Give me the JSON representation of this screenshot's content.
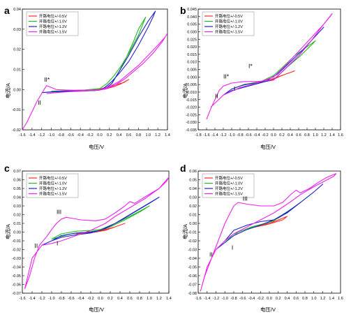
{
  "chart_data": [
    {
      "type": "line",
      "panel_label": "a",
      "xlabel": "电压/V",
      "ylabel": "电流/A",
      "xlim": [
        -1.6,
        1.4
      ],
      "ylim": [
        -0.02,
        0.04
      ],
      "xticks": [
        "-1.6",
        "-1.4",
        "-1.2",
        "-1.0",
        "-0.8",
        "-0.6",
        "-0.4",
        "-0.2",
        "0.0",
        "0.2",
        "0.4",
        "0.6",
        "0.8",
        "1.0",
        "1.2",
        "1.4"
      ],
      "yticks": [
        "-0.02",
        "-0.01",
        "0.00",
        "0.01",
        "0.02",
        "0.03",
        "0.04"
      ],
      "legend": [
        {
          "name": "开路电位+/-0.5V",
          "color": "#ff2a2a"
        },
        {
          "name": "开路电位+/-1.0V",
          "color": "#22bb22"
        },
        {
          "name": "开路电位+/-1.2V",
          "color": "#2222cc"
        },
        {
          "name": "开路电位+/-1.5V",
          "color": "#ee22ee"
        }
      ],
      "annotations": [
        {
          "text": "II*",
          "x": -1.15,
          "y": 0.004
        },
        {
          "text": "II",
          "x": -1.28,
          "y": -0.0075
        }
      ],
      "series": [
        {
          "name": "开路电位+/-0.5V",
          "x": [
            -0.7,
            -0.5,
            -0.2,
            0.0,
            0.15,
            0.3,
            0.45,
            0.6,
            0.5,
            0.3,
            0.15,
            0.0,
            -0.3,
            -0.7
          ],
          "y": [
            -0.0005,
            -0.0005,
            -0.0004,
            -0.0002,
            0.0005,
            0.0015,
            0.003,
            0.005,
            0.0035,
            0.0022,
            0.0012,
            0.0003,
            -0.0002,
            -0.0005
          ]
        },
        {
          "name": "开路电位+/-1.0V",
          "x": [
            -1.0,
            -0.8,
            -0.5,
            -0.2,
            0.1,
            0.25,
            0.4,
            0.55,
            0.7,
            0.8,
            0.9,
            0.95,
            0.9,
            0.8,
            0.6,
            0.45,
            0.3,
            0.15,
            0.0,
            -0.3,
            -0.6,
            -1.0
          ],
          "y": [
            -0.0008,
            -0.0007,
            -0.0006,
            -0.0004,
            0.0002,
            0.003,
            0.009,
            0.016,
            0.024,
            0.03,
            0.034,
            0.036,
            0.033,
            0.027,
            0.018,
            0.012,
            0.007,
            0.003,
            0.0005,
            -0.0002,
            -0.0005,
            -0.0008
          ]
        },
        {
          "name": "开路电位+/-1.2V",
          "x": [
            -1.2,
            -1.0,
            -0.7,
            -0.4,
            -0.1,
            0.1,
            0.25,
            0.4,
            0.6,
            0.8,
            1.0,
            1.15,
            1.1,
            1.0,
            0.8,
            0.6,
            0.4,
            0.25,
            0.1,
            0.0,
            -0.3,
            -0.7,
            -1.0,
            -1.2
          ],
          "y": [
            -0.0015,
            -0.0012,
            -0.0009,
            -0.0007,
            -0.0005,
            0.0003,
            0.003,
            0.009,
            0.017,
            0.026,
            0.034,
            0.039,
            0.036,
            0.031,
            0.022,
            0.014,
            0.008,
            0.004,
            0.001,
            -0.0003,
            -0.0005,
            -0.0008,
            -0.0011,
            -0.0015
          ]
        },
        {
          "name": "开路电位+/-1.5V",
          "x": [
            -1.6,
            -1.5,
            -1.4,
            -1.3,
            -1.2,
            -1.1,
            -1.0,
            -0.9,
            -0.7,
            -0.4,
            -0.1,
            0.1,
            0.3,
            0.5,
            0.7,
            0.9,
            1.1,
            1.3,
            1.4,
            1.35,
            1.2,
            1.0,
            0.8,
            0.6,
            0.4,
            0.2,
            0.0,
            -0.3,
            -0.6,
            -0.9,
            -1.1
          ],
          "y": [
            -0.02,
            -0.016,
            -0.011,
            -0.006,
            -0.002,
            0.002,
            0.001,
            0.0,
            -0.0002,
            -0.0004,
            -0.0003,
            0.0002,
            0.002,
            0.005,
            0.009,
            0.013,
            0.018,
            0.024,
            0.028,
            0.026,
            0.022,
            0.017,
            0.012,
            0.008,
            0.004,
            0.0015,
            -0.0002,
            -0.0007,
            -0.001,
            -0.0015,
            -0.002
          ]
        }
      ]
    },
    {
      "type": "line",
      "panel_label": "b",
      "xlabel": "电压/V",
      "ylabel": "电流/A",
      "xlim": [
        -1.8,
        1.6
      ],
      "ylim": [
        -0.035,
        0.045
      ],
      "xticks": [
        "-1.8",
        "-1.6",
        "-1.4",
        "-1.2",
        "-1.0",
        "-0.8",
        "-0.6",
        "-0.4",
        "-0.2",
        "0.0",
        "0.2",
        "0.4",
        "0.6",
        "0.8",
        "1.0",
        "1.2",
        "1.4",
        "1.6"
      ],
      "yticks": [
        "-0.035",
        "-0.030",
        "-0.025",
        "-0.020",
        "-0.015",
        "-0.010",
        "-0.005",
        "0.000",
        "0.005",
        "0.010",
        "0.015",
        "0.020",
        "0.025",
        "0.030",
        "0.035",
        "0.040",
        "0.045"
      ],
      "legend": [
        {
          "name": "开路电位+/-0.5V",
          "color": "#ff2a2a"
        },
        {
          "name": "开路电位+/-1.0V",
          "color": "#22bb22"
        },
        {
          "name": "开路电位+/-1.2V",
          "color": "#2222cc"
        },
        {
          "name": "开路电位+/-1.5V",
          "color": "#ee22ee"
        }
      ],
      "annotations": [
        {
          "text": "I*",
          "x": -0.6,
          "y": 0.006
        },
        {
          "text": "II*",
          "x": -1.2,
          "y": -0.001
        },
        {
          "text": "I",
          "x": -0.95,
          "y": -0.009
        },
        {
          "text": "II",
          "x": -1.4,
          "y": -0.014
        }
      ],
      "series": [
        {
          "name": "开路电位+/-0.5V",
          "x": [
            -0.5,
            -0.2,
            0.0,
            0.2,
            0.5,
            0.3,
            0.1,
            -0.1,
            -0.5
          ],
          "y": [
            -0.004,
            -0.003,
            -0.0015,
            0.001,
            0.004,
            0.002,
            0.0,
            -0.002,
            -0.004
          ]
        },
        {
          "name": "开路电位+/-1.0V",
          "x": [
            -1.0,
            -0.8,
            -0.5,
            -0.2,
            0.0,
            0.3,
            0.6,
            0.9,
            1.0,
            0.8,
            0.5,
            0.2,
            0.0,
            -0.3,
            -0.7,
            -1.0
          ],
          "y": [
            -0.008,
            -0.006,
            -0.004,
            -0.003,
            -0.002,
            0.006,
            0.013,
            0.021,
            0.024,
            0.02,
            0.014,
            0.006,
            0.001,
            -0.003,
            -0.005,
            -0.008
          ]
        },
        {
          "name": "开路电位+/-1.2V",
          "x": [
            -1.2,
            -1.0,
            -0.7,
            -0.4,
            0.0,
            0.3,
            0.6,
            0.9,
            1.2,
            1.0,
            0.7,
            0.4,
            0.1,
            -0.2,
            -0.6,
            -1.0,
            -1.2
          ],
          "y": [
            -0.012,
            -0.008,
            -0.005,
            -0.004,
            -0.002,
            0.006,
            0.014,
            0.024,
            0.033,
            0.027,
            0.018,
            0.01,
            0.002,
            -0.003,
            -0.006,
            -0.009,
            -0.012
          ]
        },
        {
          "name": "开路电位+/-1.5V",
          "x": [
            -1.6,
            -1.5,
            -1.4,
            -1.3,
            -1.2,
            -1.0,
            -0.7,
            -0.4,
            0.0,
            0.3,
            0.6,
            0.9,
            1.2,
            1.4,
            1.35,
            1.2,
            0.9,
            0.6,
            0.3,
            0.0,
            -0.4,
            -0.8,
            -1.2,
            -1.5
          ],
          "y": [
            -0.028,
            -0.021,
            -0.015,
            -0.009,
            -0.006,
            -0.004,
            -0.003,
            -0.003,
            -0.002,
            0.006,
            0.014,
            0.024,
            0.035,
            0.042,
            0.04,
            0.035,
            0.026,
            0.017,
            0.008,
            0.0,
            -0.004,
            -0.007,
            -0.012,
            -0.02
          ]
        }
      ]
    },
    {
      "type": "line",
      "panel_label": "c",
      "xlabel": "电压/V",
      "ylabel": "电流/A",
      "xlim": [
        -1.6,
        1.4
      ],
      "ylim": [
        -0.07,
        0.07
      ],
      "xticks": [
        "-1.6",
        "-1.4",
        "-1.2",
        "-1.0",
        "-0.8",
        "-0.6",
        "-0.4",
        "-0.2",
        "0.0",
        "0.2",
        "0.4",
        "0.6",
        "0.8",
        "1.0",
        "1.2",
        "1.4"
      ],
      "yticks": [
        "-0.07",
        "-0.06",
        "-0.05",
        "-0.04",
        "-0.03",
        "-0.02",
        "-0.01",
        "0.00",
        "0.01",
        "0.02",
        "0.03",
        "0.04",
        "0.05",
        "0.06",
        "0.07"
      ],
      "legend": [
        {
          "name": "开路电位+/-0.5V",
          "color": "#ff2a2a"
        },
        {
          "name": "开路电位+/-1.0V",
          "color": "#22bb22"
        },
        {
          "name": "开路电位+/-1.2V",
          "color": "#2222cc"
        },
        {
          "name": "开路电位+/-1.5V",
          "color": "#ee22ee"
        }
      ],
      "annotations": [
        {
          "text": "III",
          "x": -0.9,
          "y": 0.021
        },
        {
          "text": "II",
          "x": -1.35,
          "y": -0.018
        },
        {
          "text": "I",
          "x": -0.9,
          "y": -0.015
        }
      ],
      "series": [
        {
          "name": "开路电位+/-0.5V",
          "x": [
            -0.5,
            -0.3,
            -0.1,
            0.1,
            0.3,
            0.5,
            0.3,
            0.1,
            -0.1,
            -0.3,
            -0.5
          ],
          "y": [
            -0.002,
            -0.001,
            0.0,
            0.002,
            0.006,
            0.01,
            0.006,
            0.003,
            0.0,
            -0.001,
            -0.002
          ]
        },
        {
          "name": "开路电位+/-1.0V",
          "x": [
            -1.0,
            -0.8,
            -0.5,
            -0.2,
            0.0,
            0.3,
            0.6,
            0.9,
            1.0,
            0.8,
            0.5,
            0.2,
            0.0,
            -0.3,
            -0.6,
            -1.0
          ],
          "y": [
            -0.008,
            -0.002,
            0.001,
            0.002,
            0.003,
            0.01,
            0.018,
            0.027,
            0.03,
            0.023,
            0.014,
            0.006,
            0.002,
            0.0,
            -0.002,
            -0.008
          ]
        },
        {
          "name": "开路电位+/-1.2V",
          "x": [
            -1.2,
            -1.0,
            -0.8,
            -0.5,
            -0.2,
            0.0,
            0.3,
            0.6,
            0.9,
            1.2,
            1.0,
            0.7,
            0.4,
            0.1,
            -0.2,
            -0.5,
            -0.8,
            -1.0,
            -1.2
          ],
          "y": [
            -0.015,
            -0.01,
            -0.004,
            -0.001,
            0.0,
            0.002,
            0.01,
            0.02,
            0.03,
            0.04,
            0.033,
            0.023,
            0.013,
            0.004,
            -0.001,
            -0.003,
            -0.006,
            -0.01,
            -0.015
          ]
        },
        {
          "name": "开路电位+/-1.5V",
          "x": [
            -1.55,
            -1.45,
            -1.35,
            -1.25,
            -1.1,
            -1.0,
            -0.9,
            -0.8,
            -0.7,
            -0.6,
            -0.4,
            -0.1,
            0.1,
            0.3,
            0.5,
            0.6,
            0.7,
            0.9,
            1.2,
            1.4,
            1.35,
            1.2,
            0.9,
            0.6,
            0.3,
            0.1,
            -0.2,
            -0.5,
            -0.8,
            -1.0,
            -1.2,
            -1.4,
            -1.55
          ],
          "y": [
            -0.065,
            -0.05,
            -0.03,
            -0.015,
            -0.005,
            0.003,
            0.01,
            0.015,
            0.017,
            0.016,
            0.014,
            0.013,
            0.015,
            0.022,
            0.03,
            0.035,
            0.033,
            0.04,
            0.05,
            0.063,
            0.058,
            0.05,
            0.038,
            0.028,
            0.018,
            0.01,
            0.002,
            -0.004,
            -0.01,
            -0.013,
            -0.015,
            -0.03,
            -0.065
          ]
        }
      ]
    },
    {
      "type": "line",
      "panel_label": "d",
      "xlabel": "电压/V",
      "ylabel": "电流/A",
      "xlim": [
        -1.6,
        1.6
      ],
      "ylim": [
        -0.08,
        0.06
      ],
      "xticks": [
        "-1.6",
        "-1.4",
        "-1.2",
        "-1.0",
        "-0.8",
        "-0.6",
        "-0.4",
        "-0.2",
        "0.0",
        "0.2",
        "0.4",
        "0.6",
        "0.8",
        "1.0",
        "1.2",
        "1.4",
        "1.6"
      ],
      "yticks": [
        "-0.08",
        "-0.07",
        "-0.06",
        "-0.05",
        "-0.04",
        "-0.03",
        "-0.02",
        "-0.01",
        "0.00",
        "0.01",
        "0.02",
        "0.03",
        "0.04",
        "0.05",
        "0.06"
      ],
      "legend": [
        {
          "name": "开路电位+/-0.5V",
          "color": "#ff2a2a"
        },
        {
          "name": "开路电位+/-1.0V",
          "color": "#22bb22"
        },
        {
          "name": "开路电位+/-1.2V",
          "color": "#2222cc"
        },
        {
          "name": "开路电位+/-1.5V",
          "color": "#ee22ee"
        }
      ],
      "annotations": [
        {
          "text": "III",
          "x": -0.6,
          "y": 0.026
        },
        {
          "text": "II",
          "x": -1.35,
          "y": -0.038
        },
        {
          "text": "I",
          "x": -0.85,
          "y": -0.03
        }
      ],
      "series": [
        {
          "name": "开路电位+/-0.5V",
          "x": [
            -0.5,
            -0.3,
            0.0,
            0.2,
            0.4,
            0.3,
            0.1,
            -0.1,
            -0.3,
            -0.5
          ],
          "y": [
            -0.006,
            -0.003,
            0.0,
            0.004,
            0.008,
            0.004,
            0.001,
            -0.002,
            -0.004,
            -0.006
          ]
        },
        {
          "name": "开路电位+/-1.0V",
          "x": [
            -1.0,
            -0.8,
            -0.5,
            -0.2,
            0.1,
            0.3,
            0.6,
            0.9,
            1.0,
            0.8,
            0.5,
            0.2,
            -0.1,
            -0.4,
            -0.7,
            -1.0
          ],
          "y": [
            -0.022,
            -0.012,
            -0.006,
            -0.002,
            0.003,
            0.01,
            0.02,
            0.032,
            0.036,
            0.028,
            0.016,
            0.006,
            0.0,
            -0.004,
            -0.01,
            -0.022
          ]
        },
        {
          "name": "开路电位+/-1.2V",
          "x": [
            -1.2,
            -1.0,
            -0.8,
            -0.5,
            -0.2,
            0.1,
            0.4,
            0.7,
            1.0,
            1.2,
            1.0,
            0.7,
            0.4,
            0.1,
            -0.2,
            -0.5,
            -0.8,
            -1.0,
            -1.2
          ],
          "y": [
            -0.03,
            -0.02,
            -0.008,
            -0.002,
            0.002,
            0.004,
            0.012,
            0.024,
            0.036,
            0.045,
            0.036,
            0.024,
            0.013,
            0.004,
            -0.002,
            -0.007,
            -0.014,
            -0.022,
            -0.03
          ]
        },
        {
          "name": "开路电位+/-1.5V",
          "x": [
            -1.55,
            -1.45,
            -1.3,
            -1.15,
            -1.0,
            -0.9,
            -0.8,
            -0.7,
            -0.5,
            -0.2,
            0.1,
            0.3,
            0.5,
            0.6,
            0.7,
            0.9,
            1.1,
            1.3,
            1.5,
            1.45,
            1.3,
            1.0,
            0.7,
            0.4,
            0.1,
            -0.2,
            -0.5,
            -0.8,
            -1.0,
            -1.2,
            -1.4,
            -1.55
          ],
          "y": [
            -0.078,
            -0.06,
            -0.04,
            -0.02,
            0.0,
            0.01,
            0.02,
            0.024,
            0.022,
            0.02,
            0.02,
            0.024,
            0.034,
            0.038,
            0.035,
            0.04,
            0.047,
            0.053,
            0.057,
            0.054,
            0.05,
            0.042,
            0.033,
            0.022,
            0.012,
            0.004,
            -0.004,
            -0.012,
            -0.02,
            -0.03,
            -0.05,
            -0.078
          ]
        }
      ]
    }
  ]
}
